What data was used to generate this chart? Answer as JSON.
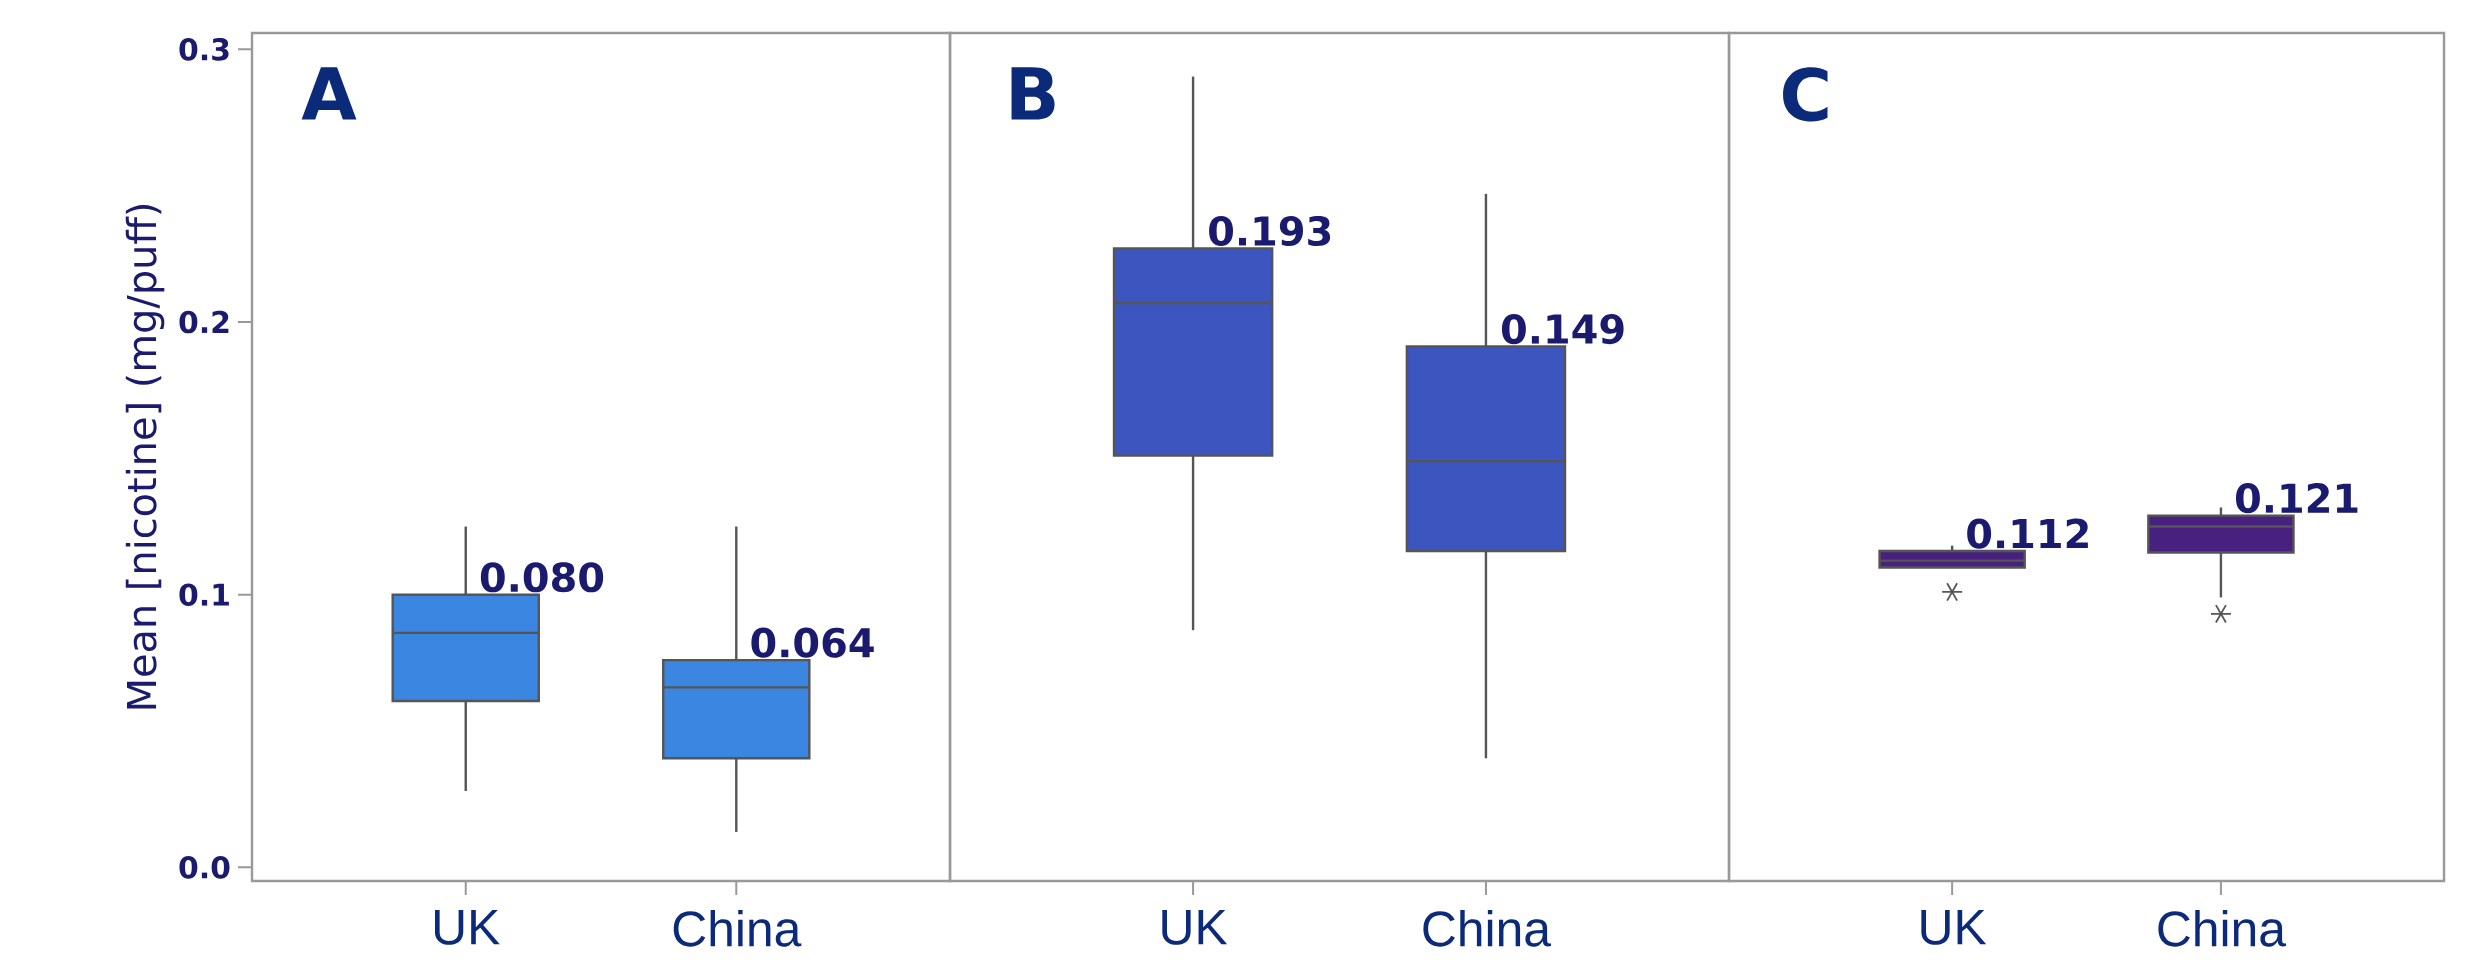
{
  "chart_data": [
    {
      "type": "box",
      "title": "A",
      "ylabel": "Mean [nicotine] (mg/puff)",
      "categories": [
        "UK",
        "China"
      ],
      "color": "#3a86e0",
      "ylim": [
        -0.005,
        0.306
      ],
      "yticks": [
        {
          "value": 0,
          "label": "0.0"
        },
        {
          "value": 0.1,
          "label": "0.1"
        },
        {
          "value": 0.2,
          "label": "0.2"
        },
        {
          "value": 0.3,
          "label": "0.3"
        }
      ],
      "boxes": [
        {
          "low": 0.028,
          "q1": 0.061,
          "median": 0.086,
          "q3": 0.1,
          "high": 0.125
        },
        {
          "low": 0.013,
          "q1": 0.04,
          "median": 0.066,
          "q3": 0.076,
          "high": 0.125
        }
      ],
      "annotations": [
        "0.080",
        "0.064"
      ]
    },
    {
      "type": "box",
      "title": "B",
      "categories": [
        "UK",
        "China"
      ],
      "color": "#3c55bf",
      "ylim": [
        -0.005,
        0.306
      ],
      "tick_labels": "x",
      "boxes": [
        {
          "low": 0.087,
          "q1": 0.151,
          "median": 0.207,
          "q3": 0.227,
          "high": 0.29
        },
        {
          "low": 0.04,
          "q1": 0.116,
          "median": 0.149,
          "q3": 0.191,
          "high": 0.247
        }
      ],
      "annotations": [
        "0.193",
        "0.149"
      ]
    },
    {
      "type": "box",
      "title": "C",
      "categories": [
        "UK",
        "China"
      ],
      "color": "#48207f",
      "ylim": [
        -0.005,
        0.306
      ],
      "tick_labels": "x",
      "marker": "star",
      "boxes": [
        {
          "low": 0.11,
          "q1": 0.11,
          "median": 0.1125,
          "q3": 0.116,
          "high": 0.118,
          "outliers": [
            0.101
          ]
        },
        {
          "low": 0.099,
          "q1": 0.1155,
          "median": 0.125,
          "q3": 0.129,
          "high": 0.132,
          "outliers": [
            0.093
          ]
        }
      ],
      "annotations": [
        "0.112",
        "0.121"
      ]
    }
  ]
}
